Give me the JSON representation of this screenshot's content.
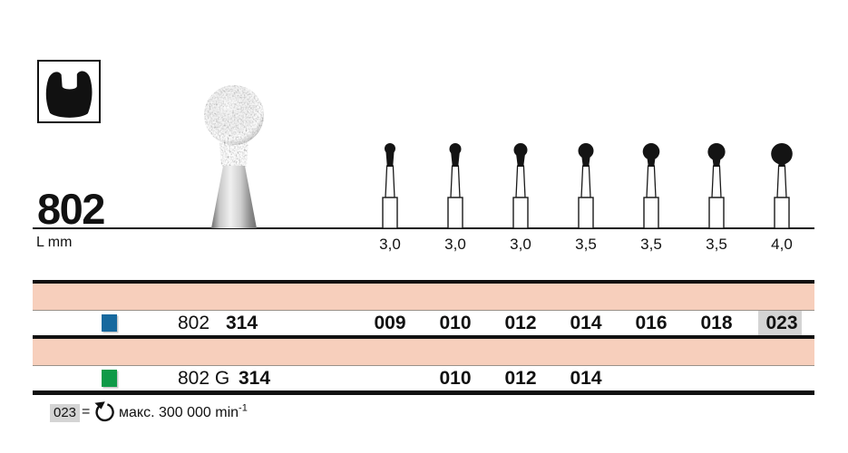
{
  "header": {
    "family_number": "802",
    "length_unit_label": "L mm"
  },
  "figures": {
    "lengths": [
      "3,0",
      "3,0",
      "3,0",
      "3,5",
      "3,5",
      "3,5",
      "4,0"
    ]
  },
  "table": {
    "rows": [
      {
        "swatch_color": "#17699e",
        "code": "802",
        "iso": "314",
        "sizes": [
          "009",
          "010",
          "012",
          "014",
          "016",
          "018",
          "023"
        ]
      },
      {
        "swatch_color": "#0f9a48",
        "code": "802 G",
        "iso": "314",
        "sizes": [
          "",
          "010",
          "012",
          "014",
          "",
          "",
          ""
        ]
      }
    ],
    "highlighted_size": "023"
  },
  "legend": {
    "size_code": "023",
    "equals_sign": "=",
    "text": "макс. 300 000 min",
    "unit_exponent": "-1"
  },
  "colors": {
    "band_pink": "#f7cfbc",
    "highlight_gray": "#d4d4d4",
    "accent_blue": "#17699e",
    "accent_green": "#0f9a48"
  }
}
